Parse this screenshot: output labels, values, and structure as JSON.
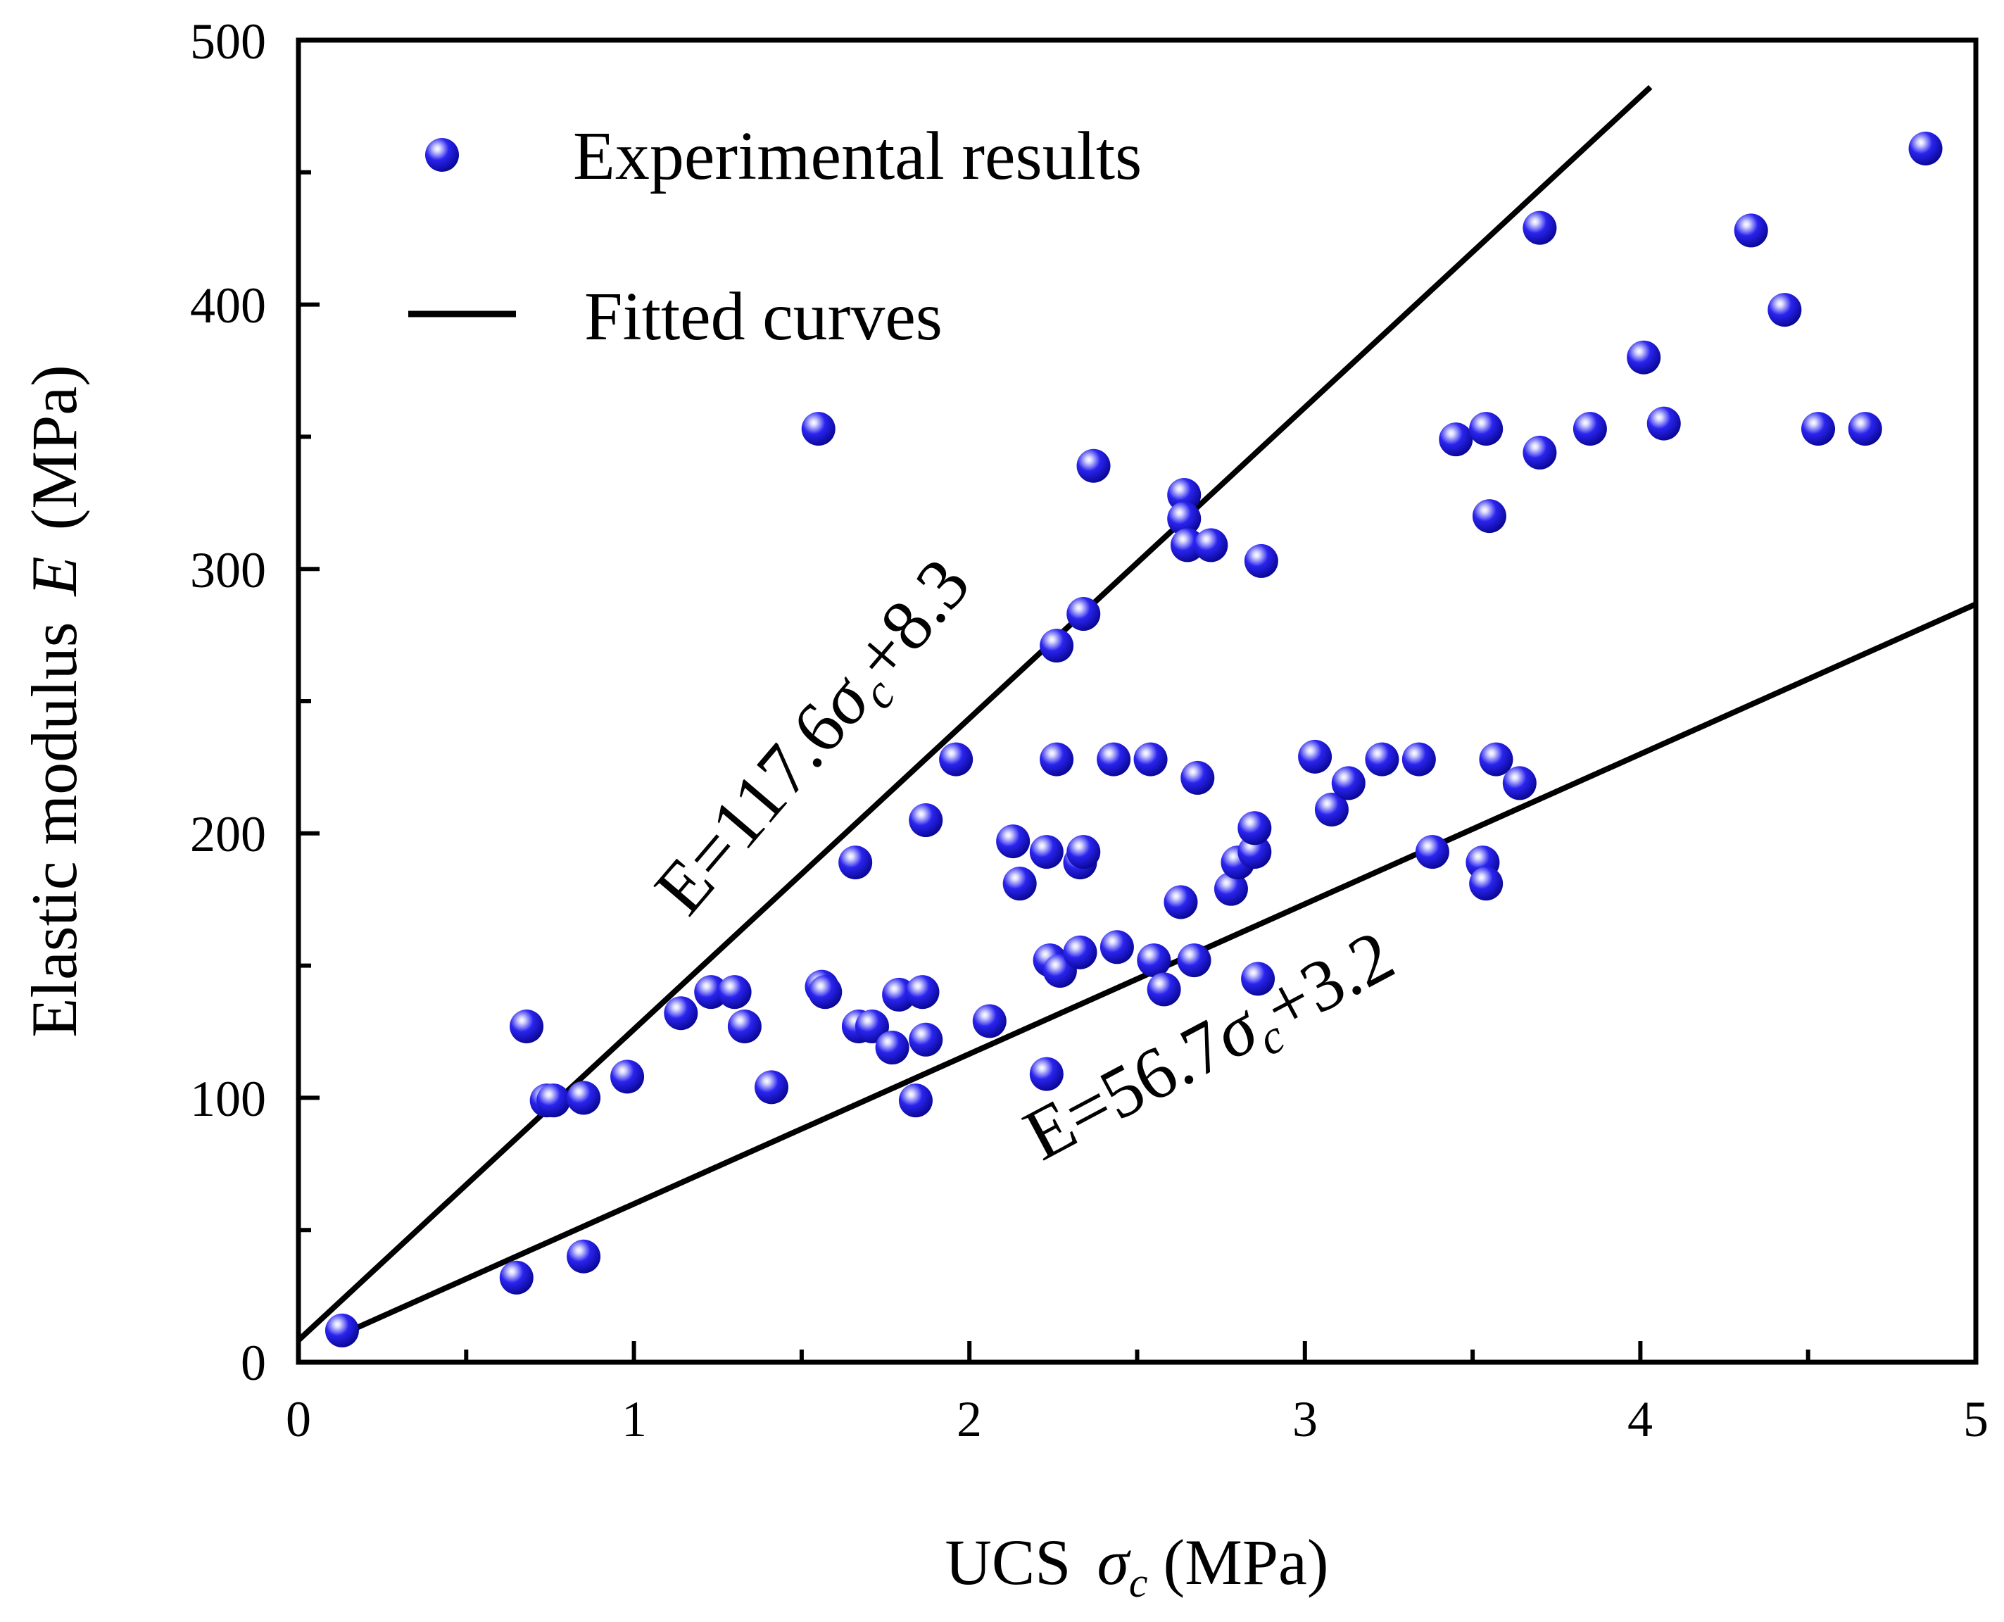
{
  "colors": {
    "marker": "#1a14e6",
    "marker_dark": "#05038a",
    "line": "#000000",
    "axis": "#000000"
  },
  "chart_data": {
    "type": "scatter",
    "title": "",
    "xlabel_main": "UCS",
    "xlabel_symbol": "σ",
    "xlabel_sub": "c",
    "xlabel_unit": "(MPa)",
    "ylabel_main": "Elastic modulus",
    "ylabel_symbol": "E",
    "ylabel_unit": "(MPa)",
    "xlim": [
      0,
      5
    ],
    "ylim": [
      0,
      500
    ],
    "xticks": [
      0,
      1,
      2,
      3,
      4,
      5
    ],
    "xtick_labels": [
      "0",
      "1",
      "2",
      "3",
      "4",
      "5"
    ],
    "yticks": [
      0,
      100,
      200,
      300,
      400,
      500
    ],
    "ytick_labels": [
      "0",
      "100",
      "200",
      "300",
      "400",
      "500"
    ],
    "grid": false,
    "legend_position": "top-left",
    "legend": [
      {
        "label": "Experimental results",
        "kind": "marker"
      },
      {
        "label": "Fitted curves",
        "kind": "line"
      }
    ],
    "fits": [
      {
        "name": "upper",
        "slope": 117.6,
        "intercept": 8.3,
        "x_range": [
          0,
          4.03
        ],
        "label_prefix": "E=117.6",
        "label_symbol": "σ",
        "label_sub": "c",
        "label_suffix": "+8.3"
      },
      {
        "name": "lower",
        "slope": 56.7,
        "intercept": 3.2,
        "x_range": [
          0.1,
          5
        ],
        "label_prefix": "E=56.7",
        "label_symbol": "σ",
        "label_sub": "c",
        "label_suffix": "+3.2"
      }
    ],
    "series": [
      {
        "name": "Experimental results",
        "points": [
          [
            0.13,
            12
          ],
          [
            0.65,
            32
          ],
          [
            0.68,
            127
          ],
          [
            0.74,
            99
          ],
          [
            0.76,
            99
          ],
          [
            0.85,
            40
          ],
          [
            0.85,
            100
          ],
          [
            0.98,
            108
          ],
          [
            1.14,
            132
          ],
          [
            1.23,
            140
          ],
          [
            1.3,
            140
          ],
          [
            1.33,
            127
          ],
          [
            1.41,
            104
          ],
          [
            1.55,
            353
          ],
          [
            1.56,
            142
          ],
          [
            1.57,
            140
          ],
          [
            1.66,
            189
          ],
          [
            1.67,
            127
          ],
          [
            1.71,
            127
          ],
          [
            1.77,
            119
          ],
          [
            1.79,
            139
          ],
          [
            1.84,
            99
          ],
          [
            1.86,
            140
          ],
          [
            1.87,
            205
          ],
          [
            1.87,
            122
          ],
          [
            1.96,
            228
          ],
          [
            2.06,
            129
          ],
          [
            2.13,
            197
          ],
          [
            2.15,
            181
          ],
          [
            2.23,
            109
          ],
          [
            2.23,
            193
          ],
          [
            2.24,
            152
          ],
          [
            2.26,
            271
          ],
          [
            2.26,
            228
          ],
          [
            2.27,
            148
          ],
          [
            2.33,
            189
          ],
          [
            2.33,
            155
          ],
          [
            2.34,
            193
          ],
          [
            2.34,
            283
          ],
          [
            2.37,
            339
          ],
          [
            2.43,
            228
          ],
          [
            2.44,
            157
          ],
          [
            2.54,
            228
          ],
          [
            2.55,
            152
          ],
          [
            2.58,
            141
          ],
          [
            2.63,
            174
          ],
          [
            2.64,
            328
          ],
          [
            2.64,
            319
          ],
          [
            2.65,
            309
          ],
          [
            2.67,
            152
          ],
          [
            2.68,
            221
          ],
          [
            2.72,
            309
          ],
          [
            2.78,
            179
          ],
          [
            2.8,
            189
          ],
          [
            2.85,
            193
          ],
          [
            2.85,
            202
          ],
          [
            2.86,
            145
          ],
          [
            2.87,
            303
          ],
          [
            3.03,
            229
          ],
          [
            3.08,
            209
          ],
          [
            3.13,
            219
          ],
          [
            3.23,
            228
          ],
          [
            3.34,
            228
          ],
          [
            3.38,
            193
          ],
          [
            3.45,
            349
          ],
          [
            3.53,
            189
          ],
          [
            3.54,
            181
          ],
          [
            3.54,
            353
          ],
          [
            3.55,
            320
          ],
          [
            3.57,
            228
          ],
          [
            3.64,
            219
          ],
          [
            3.7,
            429
          ],
          [
            3.7,
            344
          ],
          [
            3.85,
            353
          ],
          [
            4.01,
            380
          ],
          [
            4.07,
            355
          ],
          [
            4.33,
            428
          ],
          [
            4.43,
            398
          ],
          [
            4.53,
            353
          ],
          [
            4.67,
            353
          ],
          [
            4.85,
            459
          ]
        ]
      }
    ]
  }
}
